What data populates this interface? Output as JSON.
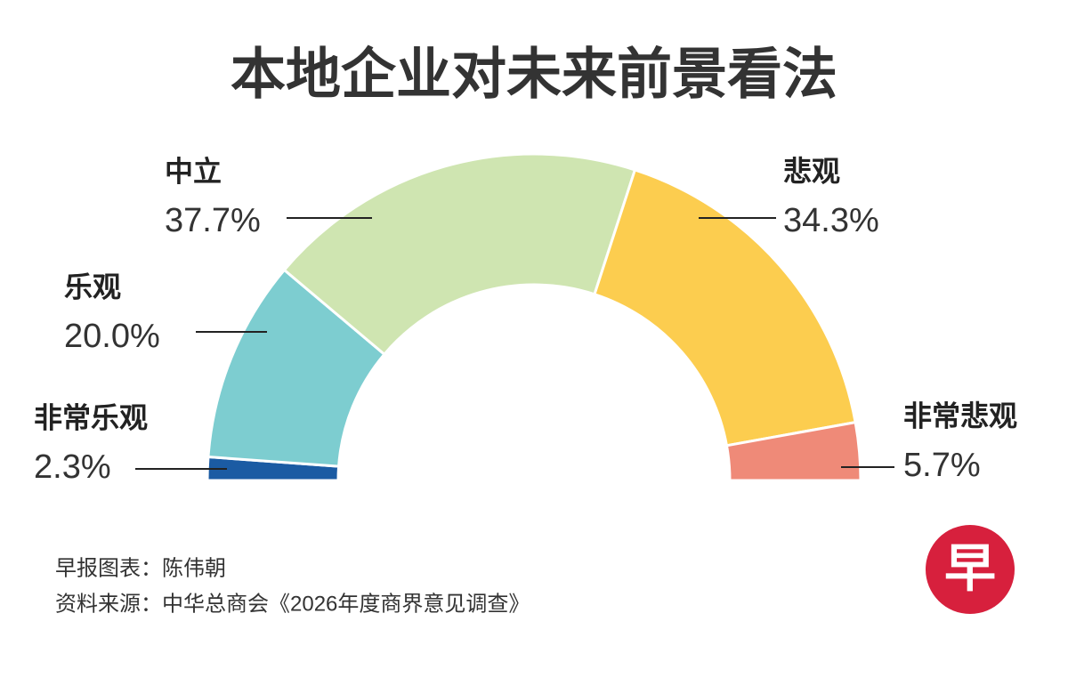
{
  "chart_data": {
    "type": "half-donut",
    "title": "本地企业对未来前景看法",
    "categories": [
      "非常乐观",
      "乐观",
      "中立",
      "悲观",
      "非常悲观"
    ],
    "values": [
      2.3,
      20.0,
      37.7,
      34.3,
      5.7
    ],
    "value_labels": [
      "2.3%",
      "20.0%",
      "37.7%",
      "34.3%",
      "5.7%"
    ],
    "colors": [
      "#1b5ba3",
      "#7dcdd0",
      "#cfe5b1",
      "#fccd4f",
      "#ef8a78"
    ],
    "credit": "早报图表：陈伟朝",
    "source": "资料来源：中华总商会《2026年度商界意见调查》",
    "logo": "早"
  }
}
